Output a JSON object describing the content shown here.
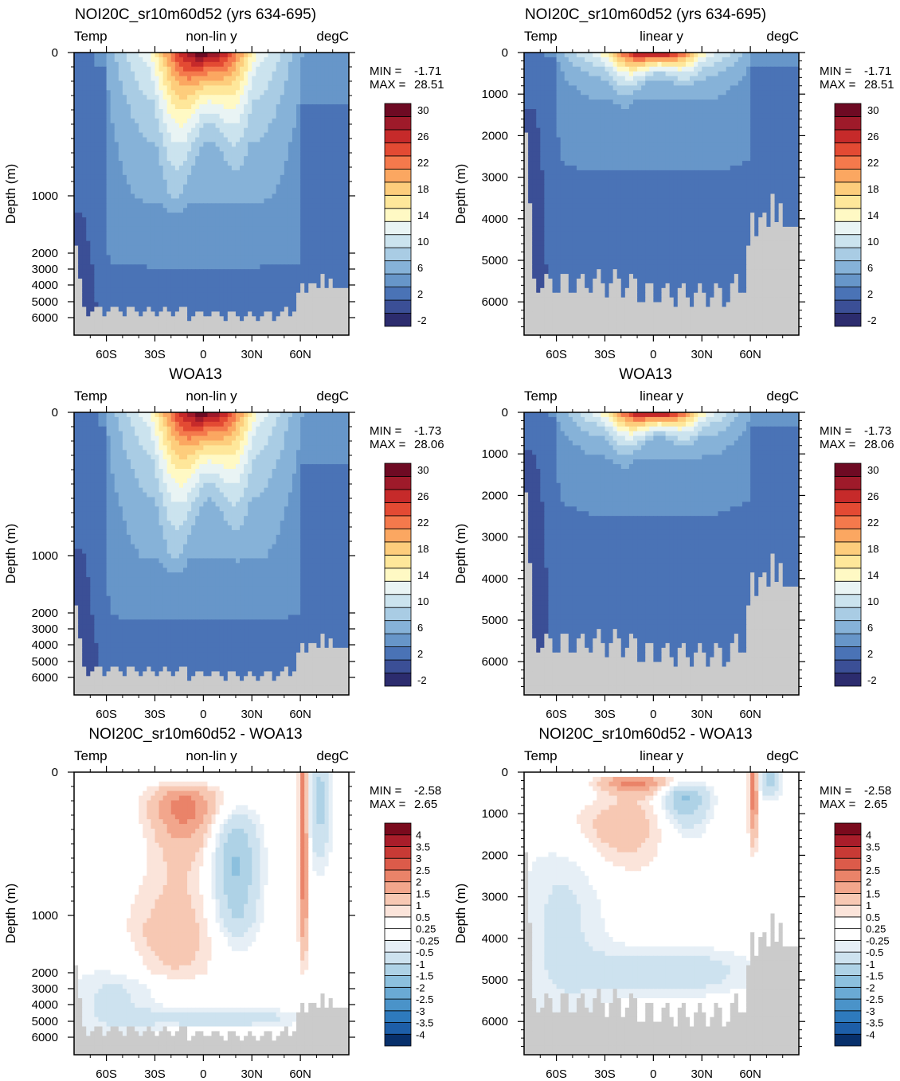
{
  "page": {
    "description_free": true
  },
  "panels": [
    {
      "title": "NOI20C_sr10m60d52 (yrs 634-695)",
      "left_label": "Temp",
      "center_label": "non-lin y",
      "right_label": "degC",
      "ylabel": "Depth (m)",
      "stats": {
        "min_label": "MIN =",
        "min": "-1.71",
        "max_label": "MAX =",
        "max": "28.51"
      },
      "colorbar": "temp"
    },
    {
      "title": "NOI20C_sr10m60d52 (yrs 634-695)",
      "left_label": "Temp",
      "center_label": "linear y",
      "right_label": "degC",
      "ylabel": "Depth (m)",
      "stats": {
        "min_label": "MIN =",
        "min": "-1.71",
        "max_label": "MAX =",
        "max": "28.51"
      },
      "colorbar": "temp"
    },
    {
      "title": "WOA13",
      "left_label": "Temp",
      "center_label": "non-lin y",
      "right_label": "degC",
      "ylabel": "Depth (m)",
      "stats": {
        "min_label": "MIN =",
        "min": "-1.73",
        "max_label": "MAX =",
        "max": "28.06"
      },
      "colorbar": "temp"
    },
    {
      "title": "WOA13",
      "left_label": "Temp",
      "center_label": "linear y",
      "right_label": "degC",
      "ylabel": "Depth (m)",
      "stats": {
        "min_label": "MIN =",
        "min": "-1.73",
        "max_label": "MAX =",
        "max": "28.06"
      },
      "colorbar": "temp"
    },
    {
      "title": "NOI20C_sr10m60d52 - WOA13",
      "left_label": "Temp",
      "center_label": "non-lin y",
      "right_label": "degC",
      "ylabel": "Depth (m)",
      "stats": {
        "min_label": "MIN =",
        "min": "-2.58",
        "max_label": "MAX =",
        "max": "2.65"
      },
      "colorbar": "diff"
    },
    {
      "title": "NOI20C_sr10m60d52 - WOA13",
      "left_label": "Temp",
      "center_label": "linear y",
      "right_label": "degC",
      "ylabel": "Depth (m)",
      "stats": {
        "min_label": "MIN =",
        "min": "-2.58",
        "max_label": "MAX =",
        "max": "2.65"
      },
      "colorbar": "diff"
    }
  ],
  "colorbars": {
    "temp": {
      "colors": [
        "#2c2c6e",
        "#3b4f96",
        "#4a73b6",
        "#6796c9",
        "#86b2d8",
        "#a9cce4",
        "#cbe3ee",
        "#e9f4f4",
        "#fff9c4",
        "#fee79a",
        "#fdcd7c",
        "#fba761",
        "#f4794c",
        "#e34a33",
        "#c62a2a",
        "#9e1a2a",
        "#6e0a23"
      ],
      "labels": [
        "-2",
        "2",
        "6",
        "10",
        "14",
        "18",
        "22",
        "26",
        "30"
      ]
    },
    "diff": {
      "colors": [
        "#08306b",
        "#1d5ea8",
        "#2e7abd",
        "#4a93c9",
        "#6aaad4",
        "#8cc0de",
        "#aed2e6",
        "#cde2ef",
        "#e6eff6",
        "#ffffff",
        "#ffffff",
        "#fbe4da",
        "#f7c8b3",
        "#f2a68c",
        "#ea8369",
        "#dc5b4a",
        "#c83a35",
        "#a91d2a",
        "#7a0a1d"
      ],
      "labels": [
        "-4",
        "-3.5",
        "-3",
        "-2.5",
        "-2",
        "-1.5",
        "-1",
        "-0.5",
        "-0.25",
        "0.25",
        "0.5",
        "1",
        "1.5",
        "2",
        "2.5",
        "3",
        "3.5",
        "4"
      ]
    }
  },
  "chart_data": [
    {
      "type": "heatmap",
      "title": "NOI20C_sr10m60d52 (yrs 634-695)",
      "variable": "Temp",
      "units": "degC",
      "vertical_axis": "non-lin y",
      "xlabel": "",
      "ylabel": "Depth (m)",
      "x_ticks": [
        "60S",
        "30S",
        "0",
        "30N",
        "60N"
      ],
      "x_tick_values": [
        -60,
        -30,
        0,
        30,
        60
      ],
      "y_ticks": [
        "0",
        "1000",
        "2000",
        "3000",
        "4000",
        "5000",
        "6000"
      ],
      "y_tick_values": [
        0,
        1000,
        2000,
        3000,
        4000,
        5000,
        6000
      ],
      "min": -1.71,
      "max": 28.51
    },
    {
      "type": "heatmap",
      "title": "NOI20C_sr10m60d52 (yrs 634-695)",
      "variable": "Temp",
      "units": "degC",
      "vertical_axis": "linear y",
      "xlabel": "",
      "ylabel": "Depth (m)",
      "x_ticks": [
        "60S",
        "30S",
        "0",
        "30N",
        "60N"
      ],
      "x_tick_values": [
        -60,
        -30,
        0,
        30,
        60
      ],
      "y_ticks": [
        "0",
        "1000",
        "2000",
        "3000",
        "4000",
        "5000",
        "6000"
      ],
      "y_tick_values": [
        0,
        1000,
        2000,
        3000,
        4000,
        5000,
        6000
      ],
      "min": -1.71,
      "max": 28.51
    },
    {
      "type": "heatmap",
      "title": "WOA13",
      "variable": "Temp",
      "units": "degC",
      "vertical_axis": "non-lin y",
      "xlabel": "",
      "ylabel": "Depth (m)",
      "x_ticks": [
        "60S",
        "30S",
        "0",
        "30N",
        "60N"
      ],
      "x_tick_values": [
        -60,
        -30,
        0,
        30,
        60
      ],
      "y_ticks": [
        "0",
        "1000",
        "2000",
        "3000",
        "4000",
        "5000",
        "6000"
      ],
      "y_tick_values": [
        0,
        1000,
        2000,
        3000,
        4000,
        5000,
        6000
      ],
      "min": -1.73,
      "max": 28.06
    },
    {
      "type": "heatmap",
      "title": "WOA13",
      "variable": "Temp",
      "units": "degC",
      "vertical_axis": "linear y",
      "xlabel": "",
      "ylabel": "Depth (m)",
      "x_ticks": [
        "60S",
        "30S",
        "0",
        "30N",
        "60N"
      ],
      "x_tick_values": [
        -60,
        -30,
        0,
        30,
        60
      ],
      "y_ticks": [
        "0",
        "1000",
        "2000",
        "3000",
        "4000",
        "5000",
        "6000"
      ],
      "y_tick_values": [
        0,
        1000,
        2000,
        3000,
        4000,
        5000,
        6000
      ],
      "min": -1.73,
      "max": 28.06
    },
    {
      "type": "heatmap",
      "title": "NOI20C_sr10m60d52 - WOA13",
      "variable": "Temp",
      "units": "degC",
      "vertical_axis": "non-lin y",
      "xlabel": "",
      "ylabel": "Depth (m)",
      "x_ticks": [
        "60S",
        "30S",
        "0",
        "30N",
        "60N"
      ],
      "x_tick_values": [
        -60,
        -30,
        0,
        30,
        60
      ],
      "y_ticks": [
        "0",
        "1000",
        "2000",
        "3000",
        "4000",
        "5000",
        "6000"
      ],
      "y_tick_values": [
        0,
        1000,
        2000,
        3000,
        4000,
        5000,
        6000
      ],
      "min": -2.58,
      "max": 2.65
    },
    {
      "type": "heatmap",
      "title": "NOI20C_sr10m60d52 - WOA13",
      "variable": "Temp",
      "units": "degC",
      "vertical_axis": "linear y",
      "xlabel": "",
      "ylabel": "Depth (m)",
      "x_ticks": [
        "60S",
        "30S",
        "0",
        "30N",
        "60N"
      ],
      "x_tick_values": [
        -60,
        -30,
        0,
        30,
        60
      ],
      "y_ticks": [
        "0",
        "1000",
        "2000",
        "3000",
        "4000",
        "5000",
        "6000"
      ],
      "y_tick_values": [
        0,
        1000,
        2000,
        3000,
        4000,
        5000,
        6000
      ],
      "min": -2.58,
      "max": 2.65
    }
  ]
}
